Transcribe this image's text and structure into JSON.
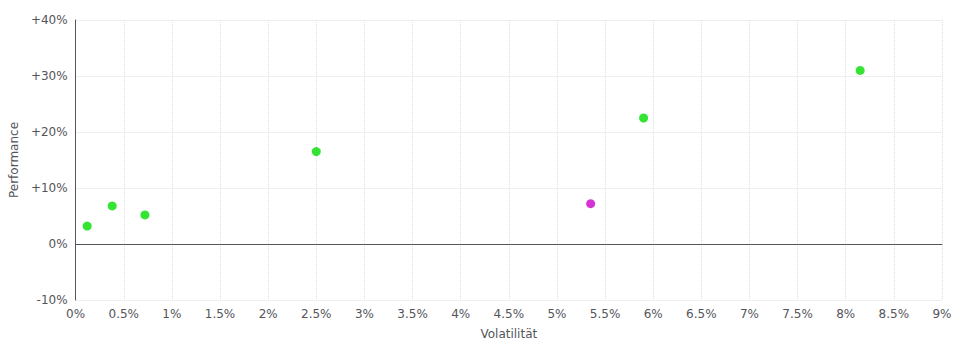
{
  "chart_data": {
    "type": "scatter",
    "xlabel": "Volatilität",
    "ylabel": "Performance",
    "series": [
      {
        "color": "#00dd00",
        "x": [
          0.12,
          0.38,
          0.72,
          2.5,
          5.9,
          8.15
        ],
        "values": [
          3.2,
          6.8,
          5.2,
          16.5,
          22.5,
          31.0
        ]
      },
      {
        "color": "#cc00cc",
        "x": [
          5.35
        ],
        "values": [
          7.2
        ]
      }
    ],
    "xlim": [
      0,
      9.0
    ],
    "ylim": [
      -10,
      40
    ],
    "xticks": [
      {
        "value": 0,
        "label": "0%"
      },
      {
        "value": 0.5,
        "label": "0.5%"
      },
      {
        "value": 1.0,
        "label": "1%"
      },
      {
        "value": 1.5,
        "label": "1.5%"
      },
      {
        "value": 2.0,
        "label": "2%"
      },
      {
        "value": 2.5,
        "label": "2.5%"
      },
      {
        "value": 3.0,
        "label": "3%"
      },
      {
        "value": 3.5,
        "label": "3.5%"
      },
      {
        "value": 4.0,
        "label": "4%"
      },
      {
        "value": 4.5,
        "label": "4.5%"
      },
      {
        "value": 5.0,
        "label": "5%"
      },
      {
        "value": 5.5,
        "label": "5.5%"
      },
      {
        "value": 6.0,
        "label": "6%"
      },
      {
        "value": 6.5,
        "label": "6.5%"
      },
      {
        "value": 7.0,
        "label": "7%"
      },
      {
        "value": 7.5,
        "label": "7.5%"
      },
      {
        "value": 8.0,
        "label": "8%"
      },
      {
        "value": 8.5,
        "label": "8.5%"
      },
      {
        "value": 9.0,
        "label": "9%"
      }
    ],
    "yticks": [
      {
        "value": -10,
        "label": "-10%"
      },
      {
        "value": 0,
        "label": "0%"
      },
      {
        "value": 10,
        "label": "+10%"
      },
      {
        "value": 20,
        "label": "+20%"
      },
      {
        "value": 30,
        "label": "+30%"
      },
      {
        "value": 40,
        "label": "+40%"
      }
    ],
    "grid": true
  }
}
